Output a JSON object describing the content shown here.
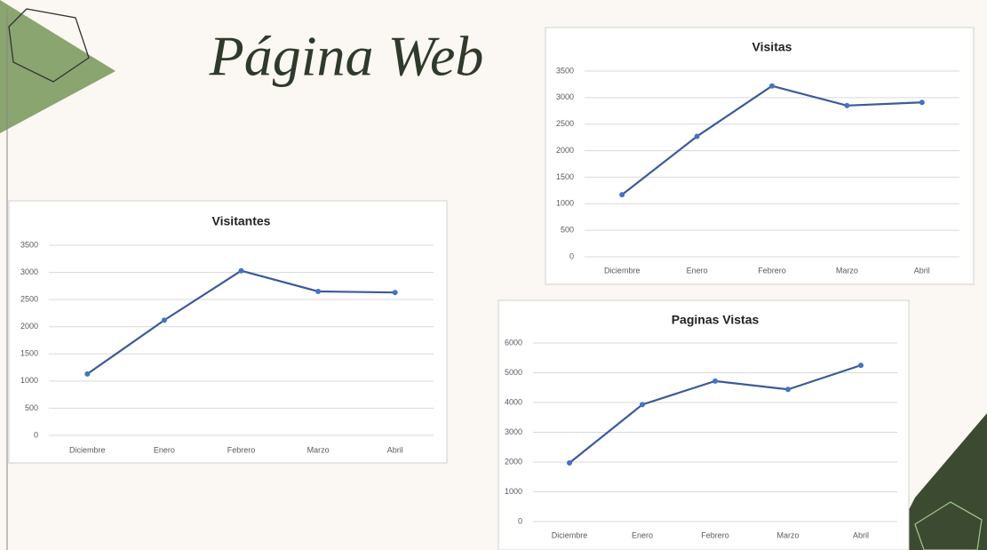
{
  "title": "Página Web",
  "chart_data": [
    {
      "type": "line",
      "title": "Visitantes",
      "categories": [
        "Diciembre",
        "Enero",
        "Febrero",
        "Marzo",
        "Abril"
      ],
      "series": [
        {
          "name": "Visitantes",
          "color": "#3c5a9a",
          "values": [
            1130,
            2120,
            3030,
            2650,
            2630
          ]
        }
      ],
      "ylim": [
        0,
        3500
      ],
      "yticks": [
        0,
        500,
        1000,
        1500,
        2000,
        2500,
        3000,
        3500
      ],
      "grid": true
    },
    {
      "type": "line",
      "title": "Visitas",
      "categories": [
        "Diciembre",
        "Enero",
        "Febrero",
        "Marzo",
        "Abril"
      ],
      "series": [
        {
          "name": "Visitas",
          "color": "#3c5a9a",
          "values": [
            1170,
            2270,
            3220,
            2850,
            2910
          ]
        }
      ],
      "ylim": [
        0,
        3500
      ],
      "yticks": [
        0,
        500,
        1000,
        1500,
        2000,
        2500,
        3000,
        3500
      ],
      "grid": true
    },
    {
      "type": "line",
      "title": "Paginas Vistas",
      "categories": [
        "Diciembre",
        "Enero",
        "Febrero",
        "Marzo",
        "Abril"
      ],
      "series": [
        {
          "name": "Paginas Vistas",
          "color": "#3c5a9a",
          "values": [
            1970,
            3930,
            4720,
            4440,
            5250
          ]
        }
      ],
      "ylim": [
        0,
        6000
      ],
      "yticks": [
        0,
        1000,
        2000,
        3000,
        4000,
        5000,
        6000
      ],
      "grid": true
    }
  ]
}
